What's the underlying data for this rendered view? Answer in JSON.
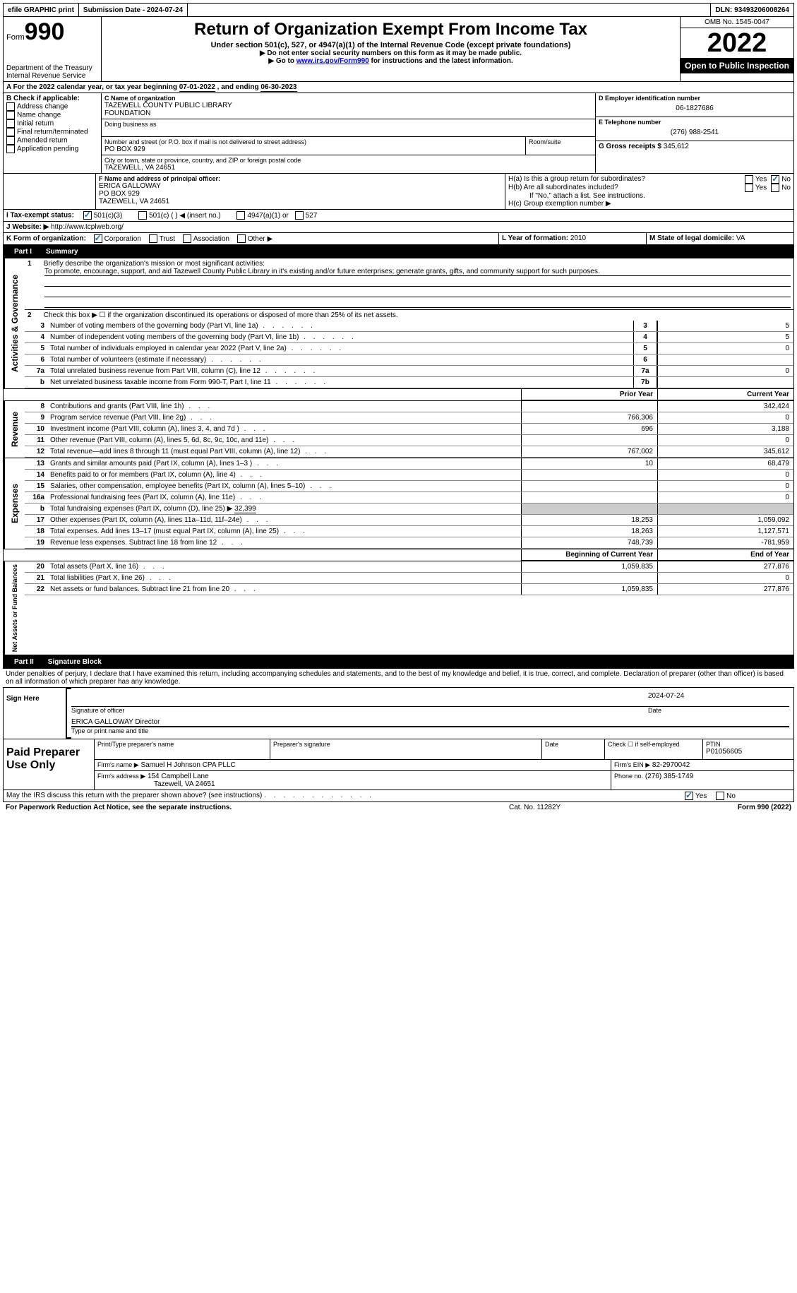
{
  "topbar": {
    "efile": "efile GRAPHIC print",
    "submission_label": "Submission Date - 2024-07-24",
    "dln_label": "DLN: 93493206008264"
  },
  "header": {
    "form_label": "Form",
    "form_number": "990",
    "dept": "Department of the Treasury",
    "irs": "Internal Revenue Service",
    "title": "Return of Organization Exempt From Income Tax",
    "subtitle": "Under section 501(c), 527, or 4947(a)(1) of the Internal Revenue Code (except private foundations)",
    "note1": "▶ Do not enter social security numbers on this form as it may be made public.",
    "note2_pre": "▶ Go to ",
    "note2_link": "www.irs.gov/Form990",
    "note2_post": " for instructions and the latest information.",
    "omb": "OMB No. 1545-0047",
    "year": "2022",
    "inspect": "Open to Public Inspection"
  },
  "periodA": {
    "label_pre": "A For the 2022 calendar year, or tax year beginning ",
    "begin": "07-01-2022",
    "label_mid": " , and ending ",
    "end": "06-30-2023"
  },
  "sectionB": {
    "label": "B Check if applicable:",
    "items": [
      "Address change",
      "Name change",
      "Initial return",
      "Final return/terminated",
      "Amended return",
      "Application pending"
    ]
  },
  "sectionC": {
    "label": "C Name of organization",
    "name1": "TAZEWELL COUNTY PUBLIC LIBRARY",
    "name2": "FOUNDATION",
    "dba_label": "Doing business as",
    "street_label": "Number and street (or P.O. box if mail is not delivered to street address)",
    "room_label": "Room/suite",
    "street": "PO BOX 929",
    "city_label": "City or town, state or province, country, and ZIP or foreign postal code",
    "city": "TAZEWELL, VA  24651"
  },
  "sectionD": {
    "label": "D Employer identification number",
    "value": "06-1827686"
  },
  "sectionE": {
    "label": "E Telephone number",
    "value": "(276) 988-2541"
  },
  "sectionG": {
    "label": "G Gross receipts $",
    "value": "345,612"
  },
  "sectionF": {
    "label": "F Name and address of principal officer:",
    "name": "ERICA GALLOWAY",
    "addr1": "PO BOX 929",
    "addr2": "TAZEWELL, VA  24651"
  },
  "sectionH": {
    "a": "H(a)  Is this a group return for subordinates?",
    "b": "H(b)  Are all subordinates included?",
    "b_note": "If \"No,\" attach a list. See instructions.",
    "c": "H(c)  Group exemption number ▶",
    "yes": "Yes",
    "no": "No"
  },
  "sectionI": {
    "label": "I Tax-exempt status:",
    "opt1": "501(c)(3)",
    "opt2": "501(c) (  ) ◀ (insert no.)",
    "opt3": "4947(a)(1) or",
    "opt4": "527"
  },
  "sectionJ": {
    "label": "J Website: ▶",
    "value": "http://www.tcplweb.org/"
  },
  "sectionK": {
    "label": "K Form of organization:",
    "opts": [
      "Corporation",
      "Trust",
      "Association",
      "Other ▶"
    ]
  },
  "sectionL": {
    "label": "L Year of formation:",
    "value": "2010"
  },
  "sectionM": {
    "label": "M State of legal domicile:",
    "value": "VA"
  },
  "part1": {
    "tab": "Part I",
    "title": "Summary",
    "q1_label": "1",
    "q1_pre": "Briefly describe the organization's mission or most significant activities:",
    "q1_text": "To promote, encourage, support, and aid Tazewell County Public Library in it's existing and/or future enterprises; generate grants, gifts, and community support for such purposes.",
    "q2_label": "2",
    "q2_text": "Check this box ▶ ☐ if the organization discontinued its operations or disposed of more than 25% of its net assets.",
    "rows_simple": [
      {
        "no": "3",
        "desc": "Number of voting members of the governing body (Part VI, line 1a)",
        "box": "3",
        "val": "5"
      },
      {
        "no": "4",
        "desc": "Number of independent voting members of the governing body (Part VI, line 1b)",
        "box": "4",
        "val": "5"
      },
      {
        "no": "5",
        "desc": "Total number of individuals employed in calendar year 2022 (Part V, line 2a)",
        "box": "5",
        "val": "0"
      },
      {
        "no": "6",
        "desc": "Total number of volunteers (estimate if necessary)",
        "box": "6",
        "val": ""
      },
      {
        "no": "7a",
        "desc": "Total unrelated business revenue from Part VIII, column (C), line 12",
        "box": "7a",
        "val": "0"
      },
      {
        "no": "b",
        "desc": "Net unrelated business taxable income from Form 990-T, Part I, line 11",
        "box": "7b",
        "val": ""
      }
    ],
    "col_prior": "Prior Year",
    "col_current": "Current Year",
    "revenue_label": "Revenue",
    "expenses_label": "Expenses",
    "netassets_label": "Net Assets or Fund Balances",
    "governance_label": "Activities & Governance",
    "revenue_rows": [
      {
        "no": "8",
        "desc": "Contributions and grants (Part VIII, line 1h)",
        "prior": "",
        "curr": "342,424"
      },
      {
        "no": "9",
        "desc": "Program service revenue (Part VIII, line 2g)",
        "prior": "766,306",
        "curr": "0"
      },
      {
        "no": "10",
        "desc": "Investment income (Part VIII, column (A), lines 3, 4, and 7d )",
        "prior": "696",
        "curr": "3,188"
      },
      {
        "no": "11",
        "desc": "Other revenue (Part VIII, column (A), lines 5, 6d, 8c, 9c, 10c, and 11e)",
        "prior": "",
        "curr": "0"
      },
      {
        "no": "12",
        "desc": "Total revenue—add lines 8 through 11 (must equal Part VIII, column (A), line 12)",
        "prior": "767,002",
        "curr": "345,612"
      }
    ],
    "expense_rows": [
      {
        "no": "13",
        "desc": "Grants and similar amounts paid (Part IX, column (A), lines 1–3 )",
        "prior": "10",
        "curr": "68,479"
      },
      {
        "no": "14",
        "desc": "Benefits paid to or for members (Part IX, column (A), line 4)",
        "prior": "",
        "curr": "0"
      },
      {
        "no": "15",
        "desc": "Salaries, other compensation, employee benefits (Part IX, column (A), lines 5–10)",
        "prior": "",
        "curr": "0"
      },
      {
        "no": "16a",
        "desc": "Professional fundraising fees (Part IX, column (A), line 11e)",
        "prior": "",
        "curr": "0"
      }
    ],
    "line_b": {
      "no": "b",
      "desc": "Total fundraising expenses (Part IX, column (D), line 25) ▶",
      "val": "32,399"
    },
    "expense_rows2": [
      {
        "no": "17",
        "desc": "Other expenses (Part IX, column (A), lines 11a–11d, 11f–24e)",
        "prior": "18,253",
        "curr": "1,059,092"
      },
      {
        "no": "18",
        "desc": "Total expenses. Add lines 13–17 (must equal Part IX, column (A), line 25)",
        "prior": "18,263",
        "curr": "1,127,571"
      },
      {
        "no": "19",
        "desc": "Revenue less expenses. Subtract line 18 from line 12",
        "prior": "748,739",
        "curr": "-781,959"
      }
    ],
    "col_begin": "Beginning of Current Year",
    "col_end": "End of Year",
    "net_rows": [
      {
        "no": "20",
        "desc": "Total assets (Part X, line 16)",
        "prior": "1,059,835",
        "curr": "277,876"
      },
      {
        "no": "21",
        "desc": "Total liabilities (Part X, line 26)",
        "prior": "",
        "curr": "0"
      },
      {
        "no": "22",
        "desc": "Net assets or fund balances. Subtract line 21 from line 20",
        "prior": "1,059,835",
        "curr": "277,876"
      }
    ]
  },
  "part2": {
    "tab": "Part II",
    "title": "Signature Block",
    "perjury": "Under penalties of perjury, I declare that I have examined this return, including accompanying schedules and statements, and to the best of my knowledge and belief, it is true, correct, and complete. Declaration of preparer (other than officer) is based on all information of which preparer has any knowledge.",
    "sign_here": "Sign Here",
    "sig_officer": "Signature of officer",
    "sig_date": "2024-07-24",
    "date_label": "Date",
    "name_title": "ERICA GALLOWAY  Director",
    "type_label": "Type or print name and title",
    "paid_label": "Paid Preparer Use Only",
    "print_name_label": "Print/Type preparer's name",
    "prep_sig_label": "Preparer's signature",
    "check_self": "Check ☐ if self-employed",
    "ptin_label": "PTIN",
    "ptin": "P01056605",
    "firm_name_label": "Firm's name   ▶",
    "firm_name": "Samuel H Johnson CPA PLLC",
    "firm_ein_label": "Firm's EIN ▶",
    "firm_ein": "82-2970042",
    "firm_addr_label": "Firm's address ▶",
    "firm_addr1": "154 Campbell Lane",
    "firm_addr2": "Tazewell, VA  24651",
    "phone_label": "Phone no.",
    "phone": "(276) 385-1749",
    "discuss": "May the IRS discuss this return with the preparer shown above? (see instructions)",
    "yes": "Yes",
    "no": "No"
  },
  "footer": {
    "paperwork": "For Paperwork Reduction Act Notice, see the separate instructions.",
    "cat": "Cat. No. 11282Y",
    "formref": "Form 990 (2022)"
  }
}
